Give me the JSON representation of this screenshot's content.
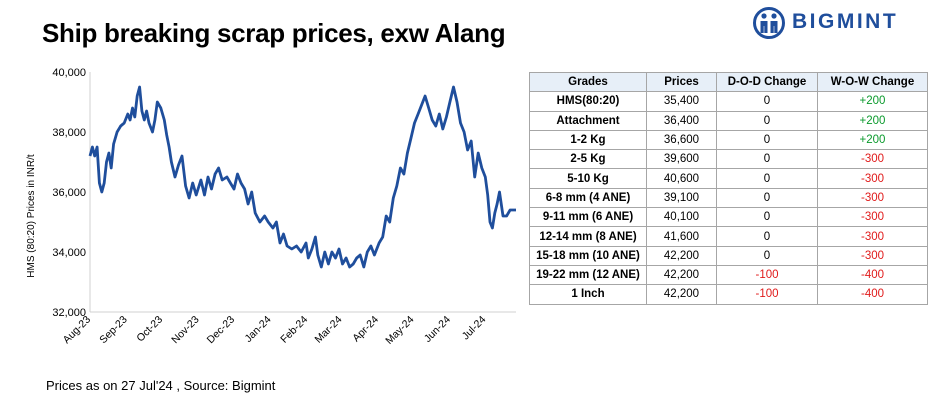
{
  "title": "Ship breaking scrap prices, exw Alang",
  "logo": {
    "text": "BIGMINT",
    "color": "#1f4e9c"
  },
  "footer": "Prices as on 27 Jul'24 , Source: Bigmint",
  "colors": {
    "line": "#1f4e9c",
    "positive": "#0a9a2c",
    "negative": "#e01a1a",
    "header_bg": "#e7eff8"
  },
  "chart_data": [
    {
      "type": "line",
      "ylabel": "HMS (80:20) Prices in INR/t",
      "xlabel": "",
      "ylim": [
        32000,
        40000
      ],
      "y_ticks": [
        "32,000",
        "34,000",
        "36,000",
        "38,000",
        "40,000"
      ],
      "y_tick_values": [
        32000,
        34000,
        36000,
        38000,
        40000
      ],
      "x_tick_labels": [
        "Aug-23",
        "Sep-23",
        "Oct-23",
        "Nov-23",
        "Dec-23",
        "Jan-24",
        "Feb-24",
        "Mar-24",
        "Apr-24",
        "May-24",
        "Jun-24",
        "Jul-24"
      ],
      "x_tick_dates": [
        "2023-08-01",
        "2023-09-01",
        "2023-10-01",
        "2023-11-01",
        "2023-12-01",
        "2024-01-01",
        "2024-02-01",
        "2024-03-01",
        "2024-04-01",
        "2024-05-01",
        "2024-06-01",
        "2024-07-01"
      ],
      "x_range": [
        "2023-08-01",
        "2024-07-27"
      ],
      "grid": false,
      "series": [
        {
          "points": [
            [
              "2023-08-01",
              37200
            ],
            [
              "2023-08-03",
              37500
            ],
            [
              "2023-08-05",
              37200
            ],
            [
              "2023-08-07",
              37500
            ],
            [
              "2023-08-09",
              36300
            ],
            [
              "2023-08-11",
              36000
            ],
            [
              "2023-08-13",
              36300
            ],
            [
              "2023-08-15",
              37000
            ],
            [
              "2023-08-17",
              37300
            ],
            [
              "2023-08-19",
              36800
            ],
            [
              "2023-08-21",
              37600
            ],
            [
              "2023-08-24",
              38000
            ],
            [
              "2023-08-27",
              38200
            ],
            [
              "2023-08-30",
              38300
            ],
            [
              "2023-09-02",
              38600
            ],
            [
              "2023-09-04",
              38400
            ],
            [
              "2023-09-06",
              38800
            ],
            [
              "2023-09-08",
              38500
            ],
            [
              "2023-09-10",
              39200
            ],
            [
              "2023-09-12",
              39500
            ],
            [
              "2023-09-14",
              38700
            ],
            [
              "2023-09-16",
              38400
            ],
            [
              "2023-09-18",
              38700
            ],
            [
              "2023-09-20",
              38300
            ],
            [
              "2023-09-23",
              38000
            ],
            [
              "2023-09-25",
              38400
            ],
            [
              "2023-09-27",
              39000
            ],
            [
              "2023-09-30",
              38800
            ],
            [
              "2023-10-03",
              38400
            ],
            [
              "2023-10-05",
              37900
            ],
            [
              "2023-10-07",
              37500
            ],
            [
              "2023-10-09",
              37000
            ],
            [
              "2023-10-12",
              36500
            ],
            [
              "2023-10-15",
              36900
            ],
            [
              "2023-10-18",
              37200
            ],
            [
              "2023-10-21",
              36200
            ],
            [
              "2023-10-24",
              35800
            ],
            [
              "2023-10-27",
              36300
            ],
            [
              "2023-10-30",
              35900
            ],
            [
              "2023-11-03",
              36400
            ],
            [
              "2023-11-06",
              35900
            ],
            [
              "2023-11-09",
              36500
            ],
            [
              "2023-11-12",
              36100
            ],
            [
              "2023-11-15",
              36600
            ],
            [
              "2023-11-18",
              36800
            ],
            [
              "2023-11-21",
              36400
            ],
            [
              "2023-11-25",
              36500
            ],
            [
              "2023-11-28",
              36300
            ],
            [
              "2023-12-01",
              36100
            ],
            [
              "2023-12-04",
              36600
            ],
            [
              "2023-12-07",
              36300
            ],
            [
              "2023-12-10",
              36100
            ],
            [
              "2023-12-13",
              35600
            ],
            [
              "2023-12-16",
              36000
            ],
            [
              "2023-12-19",
              35300
            ],
            [
              "2023-12-23",
              35000
            ],
            [
              "2023-12-27",
              35200
            ],
            [
              "2023-12-30",
              35000
            ],
            [
              "2024-01-03",
              34800
            ],
            [
              "2024-01-06",
              35000
            ],
            [
              "2024-01-09",
              34300
            ],
            [
              "2024-01-12",
              34600
            ],
            [
              "2024-01-15",
              34200
            ],
            [
              "2024-01-19",
              34100
            ],
            [
              "2024-01-23",
              34200
            ],
            [
              "2024-01-27",
              34000
            ],
            [
              "2024-01-31",
              34300
            ],
            [
              "2024-02-02",
              33800
            ],
            [
              "2024-02-05",
              34100
            ],
            [
              "2024-02-08",
              34500
            ],
            [
              "2024-02-10",
              33900
            ],
            [
              "2024-02-13",
              33500
            ],
            [
              "2024-02-16",
              34000
            ],
            [
              "2024-02-19",
              33600
            ],
            [
              "2024-02-22",
              34000
            ],
            [
              "2024-02-25",
              33800
            ],
            [
              "2024-02-28",
              34100
            ],
            [
              "2024-03-02",
              33600
            ],
            [
              "2024-03-05",
              33800
            ],
            [
              "2024-03-08",
              33500
            ],
            [
              "2024-03-11",
              33600
            ],
            [
              "2024-03-14",
              33800
            ],
            [
              "2024-03-17",
              33900
            ],
            [
              "2024-03-20",
              33500
            ],
            [
              "2024-03-23",
              34000
            ],
            [
              "2024-03-26",
              34200
            ],
            [
              "2024-03-29",
              33900
            ],
            [
              "2024-04-02",
              34300
            ],
            [
              "2024-04-05",
              34500
            ],
            [
              "2024-04-08",
              35200
            ],
            [
              "2024-04-11",
              35000
            ],
            [
              "2024-04-14",
              35800
            ],
            [
              "2024-04-17",
              36200
            ],
            [
              "2024-04-20",
              36800
            ],
            [
              "2024-04-23",
              36600
            ],
            [
              "2024-04-26",
              37300
            ],
            [
              "2024-04-29",
              37800
            ],
            [
              "2024-05-02",
              38300
            ],
            [
              "2024-05-05",
              38600
            ],
            [
              "2024-05-08",
              38900
            ],
            [
              "2024-05-11",
              39200
            ],
            [
              "2024-05-14",
              38800
            ],
            [
              "2024-05-17",
              38400
            ],
            [
              "2024-05-20",
              38200
            ],
            [
              "2024-05-23",
              38600
            ],
            [
              "2024-05-26",
              38100
            ],
            [
              "2024-05-29",
              38500
            ],
            [
              "2024-06-01",
              39000
            ],
            [
              "2024-06-04",
              39500
            ],
            [
              "2024-06-07",
              39000
            ],
            [
              "2024-06-10",
              38300
            ],
            [
              "2024-06-13",
              38000
            ],
            [
              "2024-06-16",
              37400
            ],
            [
              "2024-06-19",
              37700
            ],
            [
              "2024-06-22",
              36500
            ],
            [
              "2024-06-25",
              37300
            ],
            [
              "2024-06-28",
              36800
            ],
            [
              "2024-07-01",
              36500
            ],
            [
              "2024-07-03",
              35900
            ],
            [
              "2024-07-05",
              35000
            ],
            [
              "2024-07-07",
              34800
            ],
            [
              "2024-07-09",
              35300
            ],
            [
              "2024-07-11",
              35600
            ],
            [
              "2024-07-13",
              36000
            ],
            [
              "2024-07-16",
              35200
            ],
            [
              "2024-07-19",
              35200
            ],
            [
              "2024-07-22",
              35400
            ],
            [
              "2024-07-27",
              35400
            ]
          ]
        }
      ]
    },
    {
      "type": "table",
      "columns": [
        "Grades",
        "Prices",
        "D-O-D Change",
        "W-O-W Change"
      ],
      "rows": [
        [
          "HMS(80:20)",
          "35,400",
          "0",
          "+200"
        ],
        [
          "Attachment",
          "36,400",
          "0",
          "+200"
        ],
        [
          "1-2 Kg",
          "36,600",
          "0",
          "+200"
        ],
        [
          "2-5 Kg",
          "39,600",
          "0",
          "-300"
        ],
        [
          "5-10 Kg",
          "40,600",
          "0",
          "-300"
        ],
        [
          "6-8 mm (4 ANE)",
          "39,100",
          "0",
          "-300"
        ],
        [
          "9-11 mm (6 ANE)",
          "40,100",
          "0",
          "-300"
        ],
        [
          "12-14 mm (8 ANE)",
          "41,600",
          "0",
          "-300"
        ],
        [
          "15-18 mm (10 ANE)",
          "42,200",
          "0",
          "-300"
        ],
        [
          "19-22 mm (12 ANE)",
          "42,200",
          "-100",
          "-400"
        ],
        [
          "1 Inch",
          "42,200",
          "-100",
          "-400"
        ]
      ]
    }
  ]
}
